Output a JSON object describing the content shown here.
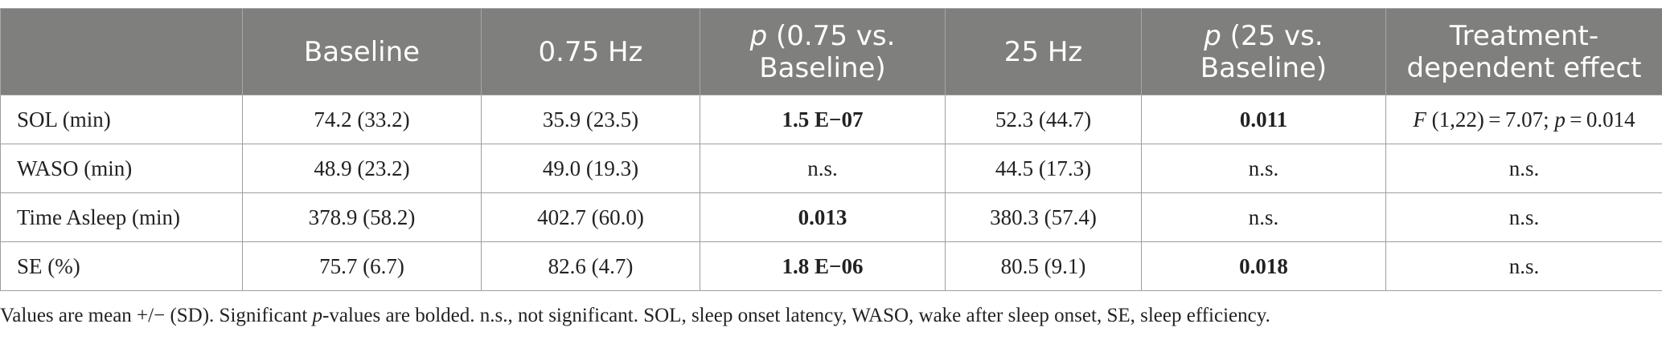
{
  "table": {
    "columns": [
      {
        "label": ""
      },
      {
        "label": "Baseline"
      },
      {
        "label": "0.75 Hz"
      },
      {
        "label_italic": "p",
        "label": " (0.75 vs. Baseline)"
      },
      {
        "label": "25 Hz"
      },
      {
        "label_italic": "p",
        "label": " (25 vs. Baseline)"
      },
      {
        "label": "Treatment-dependent effect"
      }
    ],
    "rows": [
      {
        "measure": "SOL (min)",
        "baseline": "74.2 (33.2)",
        "hz075": "35.9 (23.5)",
        "p075": "1.5 E−07",
        "hz25": "52.3 (44.7)",
        "p25": "0.011",
        "effect_italic": "F",
        "effect_mid": " (1,22) = 7.07; ",
        "effect_italic2": "p",
        "effect_end": " = 0.014"
      },
      {
        "measure": "WASO (min)",
        "baseline": "48.9 (23.2)",
        "hz075": "49.0 (19.3)",
        "p075": "n.s.",
        "hz25": "44.5 (17.3)",
        "p25": "n.s.",
        "effect": "n.s."
      },
      {
        "measure": "Time Asleep (min)",
        "baseline": "378.9 (58.2)",
        "hz075": "402.7 (60.0)",
        "p075": "0.013",
        "hz25": "380.3 (57.4)",
        "p25": "n.s.",
        "effect": "n.s."
      },
      {
        "measure": "SE (%)",
        "baseline": "75.7 (6.7)",
        "hz075": "82.6 (4.7)",
        "p075": "1.8 E−06",
        "hz25": "80.5 (9.1)",
        "p25": "0.018",
        "effect": "n.s."
      }
    ]
  },
  "footnote": {
    "part1": "Values are mean +/− (SD). Significant ",
    "italic": "p",
    "part2": "-values are bolded. n.s., not significant. SOL, sleep onset latency, WASO, wake after sleep onset, SE, sleep efficiency."
  }
}
